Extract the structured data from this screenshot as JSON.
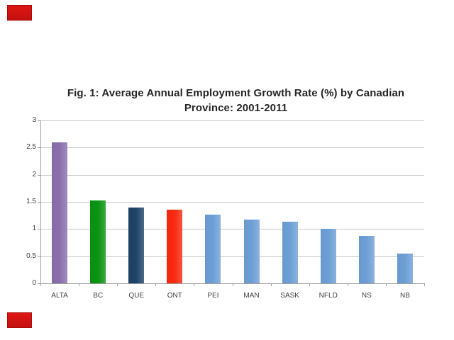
{
  "slide": {
    "background_color": "#ffffff",
    "red_marker_color": "#cf1211"
  },
  "chart_data": {
    "type": "bar",
    "title_line1": "Fig. 1: Average Annual Employment Growth Rate (%) by Canadian",
    "title_line2": "Province: 2001-2011",
    "categories": [
      "ALTA",
      "BC",
      "QUE",
      "ONT",
      "PEI",
      "MAN",
      "SASK",
      "NFLD",
      "NS",
      "NB"
    ],
    "values": [
      2.6,
      1.52,
      1.39,
      1.36,
      1.26,
      1.18,
      1.13,
      1.0,
      0.88,
      0.55
    ],
    "bar_colors": [
      "#8a6fad",
      "#0a9412",
      "#1f4368",
      "#f9290f",
      "#6d9fd6",
      "#6d9fd6",
      "#6d9fd6",
      "#6d9fd6",
      "#6d9fd6",
      "#6d9fd6"
    ],
    "xlabel": "",
    "ylabel": "",
    "ylim": [
      0,
      3
    ],
    "ytick_step": 0.5,
    "ytick_labels": [
      "0",
      "0.5",
      "1",
      "1.5",
      "2",
      "2.5",
      "3"
    ],
    "grid": true,
    "legend": "none",
    "gridline_color": "#c9c9c9",
    "axis_color": "#9e9e9e",
    "label_color": "#3f3f3f",
    "title_color": "#262626"
  }
}
